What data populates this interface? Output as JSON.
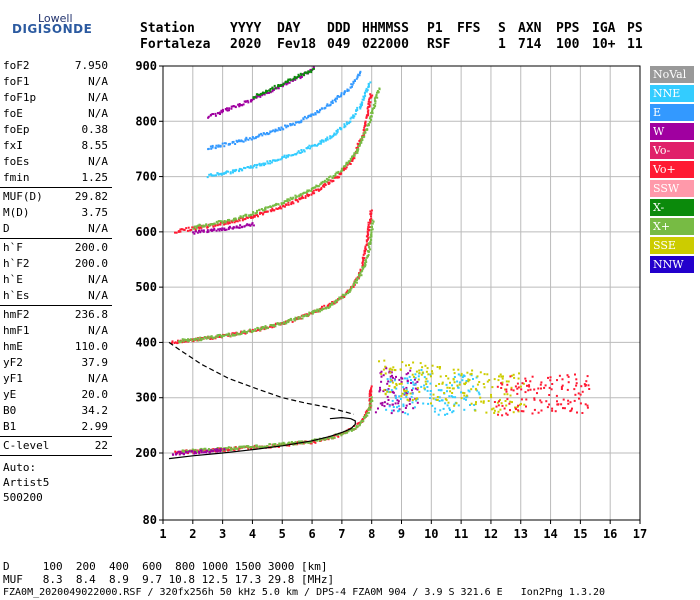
{
  "logo": {
    "top": "Lowell",
    "main": "DIGISONDE"
  },
  "header": {
    "labels": {
      "station": "Station",
      "year": "YYYY",
      "day": "DAY",
      "doy": "DDD",
      "time": "HHMMSS",
      "p1": "P1",
      "ffs": "FFS",
      "s": "S",
      "axn": "AXN",
      "pps": "PPS",
      "iga": "IGA",
      "ps": "PS"
    },
    "values": {
      "station": "Fortaleza",
      "year": "2020",
      "day": "Fev18",
      "doy": "049",
      "time": "022000",
      "p1": "RSF",
      "ffs": "",
      "s": "1",
      "axn": "714",
      "pps": "100",
      "iga": "10+",
      "ps": "11"
    }
  },
  "params": {
    "group1": [
      {
        "label": "foF2",
        "value": "7.950"
      },
      {
        "label": "foF1",
        "value": "N/A"
      },
      {
        "label": "foF1p",
        "value": "N/A"
      },
      {
        "label": "foE",
        "value": "N/A"
      },
      {
        "label": "foEp",
        "value": "0.38"
      },
      {
        "label": "fxI",
        "value": "8.55"
      },
      {
        "label": "foEs",
        "value": "N/A"
      },
      {
        "label": "fmin",
        "value": "1.25"
      }
    ],
    "group2": [
      {
        "label": "MUF(D)",
        "value": "29.82"
      },
      {
        "label": "M(D)",
        "value": "3.75"
      },
      {
        "label": "D",
        "value": "N/A"
      }
    ],
    "group3": [
      {
        "label": "h`F",
        "value": "200.0"
      },
      {
        "label": "h`F2",
        "value": "200.0"
      },
      {
        "label": "h`E",
        "value": "N/A"
      },
      {
        "label": "h`Es",
        "value": "N/A"
      }
    ],
    "group4": [
      {
        "label": "hmF2",
        "value": "236.8"
      },
      {
        "label": "hmF1",
        "value": "N/A"
      },
      {
        "label": "hmE",
        "value": "110.0"
      },
      {
        "label": "yF2",
        "value": "37.9"
      },
      {
        "label": "yF1",
        "value": "N/A"
      },
      {
        "label": "yE",
        "value": "20.0"
      },
      {
        "label": "B0",
        "value": "34.2"
      },
      {
        "label": "B1",
        "value": "2.99"
      }
    ],
    "group5": [
      {
        "label": "C-level",
        "value": "22"
      }
    ],
    "auto": [
      "Auto:",
      "Artist5",
      "500200"
    ]
  },
  "legend": [
    {
      "label": "NoVal",
      "color": "#999999"
    },
    {
      "label": "NNE",
      "color": "#33ccff"
    },
    {
      "label": "E",
      "color": "#3399ff"
    },
    {
      "label": "W",
      "color": "#a000a0"
    },
    {
      "label": "Vo-",
      "color": "#e0206a"
    },
    {
      "label": "Vo+",
      "color": "#ff1a33"
    },
    {
      "label": "SSW",
      "color": "#ff99aa"
    },
    {
      "label": "X-",
      "color": "#0b8a0b"
    },
    {
      "label": "X+",
      "color": "#77bb44"
    },
    {
      "label": "SSE",
      "color": "#cccc00"
    },
    {
      "label": "NNW",
      "color": "#2200cc"
    }
  ],
  "footer": {
    "d_row": "D     100  200  400  600  800 1000 1500 3000 [km]",
    "muf_row": "MUF   8.3  8.4  8.9  9.7 10.8 12.5 17.3 29.8 [MHz]",
    "file_row": "FZA0M_2020049022000.RSF / 320fx256h 50 kHz 5.0 km / DPS-4 FZA0M 904 / 3.9 S 321.6 E   Ion2Png 1.3.20"
  },
  "chart_data": {
    "type": "scatter",
    "title": "",
    "xlabel": "",
    "ylabel": "",
    "xlim": [
      1,
      17
    ],
    "xticks": [
      1,
      2,
      3,
      4,
      5,
      6,
      7,
      8,
      9,
      10,
      11,
      12,
      13,
      14,
      15,
      16,
      17
    ],
    "ylim": [
      80,
      900
    ],
    "yticks": [
      80,
      200,
      300,
      400,
      500,
      600,
      700,
      800,
      900
    ],
    "grid": true,
    "legend_position": "right",
    "traces": [
      {
        "name": "O-trace 1st hop",
        "color": "#ff1a33",
        "points": [
          [
            1.4,
            203
          ],
          [
            2,
            205
          ],
          [
            3,
            208
          ],
          [
            4,
            212
          ],
          [
            5,
            216
          ],
          [
            6,
            222
          ],
          [
            6.5,
            228
          ],
          [
            7,
            236
          ],
          [
            7.4,
            248
          ],
          [
            7.7,
            262
          ],
          [
            7.9,
            285
          ],
          [
            7.95,
            320
          ]
        ]
      },
      {
        "name": "X-trace 1st hop",
        "color": "#77bb44",
        "points": [
          [
            1.6,
            205
          ],
          [
            2.5,
            207
          ],
          [
            3.5,
            211
          ],
          [
            4.5,
            215
          ],
          [
            5.5,
            220
          ],
          [
            6.5,
            228
          ],
          [
            7.2,
            240
          ],
          [
            7.6,
            255
          ],
          [
            7.85,
            275
          ],
          [
            7.98,
            300
          ]
        ]
      },
      {
        "name": "W 1st hop",
        "color": "#a000a0",
        "points": [
          [
            1.3,
            201
          ],
          [
            2,
            203
          ],
          [
            2.5,
            205
          ],
          [
            3,
            207
          ]
        ]
      },
      {
        "name": "O-trace 2nd hop",
        "color": "#ff1a33",
        "points": [
          [
            1.3,
            402
          ],
          [
            2,
            406
          ],
          [
            3,
            413
          ],
          [
            4,
            423
          ],
          [
            5,
            436
          ],
          [
            6,
            455
          ],
          [
            6.8,
            476
          ],
          [
            7.3,
            500
          ],
          [
            7.6,
            530
          ],
          [
            7.8,
            580
          ],
          [
            7.95,
            640
          ]
        ]
      },
      {
        "name": "X-trace 2nd hop",
        "color": "#77bb44",
        "points": [
          [
            1.5,
            404
          ],
          [
            2.5,
            410
          ],
          [
            3.5,
            418
          ],
          [
            4.5,
            430
          ],
          [
            5.5,
            445
          ],
          [
            6.5,
            466
          ],
          [
            7.2,
            492
          ],
          [
            7.6,
            525
          ],
          [
            7.85,
            560
          ],
          [
            8,
            620
          ]
        ]
      },
      {
        "name": "O-trace 3rd hop",
        "color": "#ff1a33",
        "points": [
          [
            1.4,
            603
          ],
          [
            2,
            608
          ],
          [
            3,
            617
          ],
          [
            4,
            630
          ],
          [
            5,
            648
          ],
          [
            6,
            672
          ],
          [
            6.8,
            700
          ],
          [
            7.3,
            730
          ],
          [
            7.7,
            780
          ],
          [
            7.95,
            850
          ]
        ]
      },
      {
        "name": "X-trace 3rd hop",
        "color": "#77bb44",
        "points": [
          [
            2,
            610
          ],
          [
            3,
            620
          ],
          [
            4,
            635
          ],
          [
            5,
            655
          ],
          [
            6,
            680
          ],
          [
            7,
            715
          ],
          [
            7.5,
            750
          ],
          [
            7.9,
            800
          ],
          [
            8.2,
            860
          ]
        ]
      },
      {
        "name": "W 3rd hop",
        "color": "#a000a0",
        "points": [
          [
            2,
            600
          ],
          [
            3,
            607
          ],
          [
            4,
            615
          ]
        ]
      },
      {
        "name": "NNE upper",
        "color": "#33ccff",
        "points": [
          [
            2.5,
            703
          ],
          [
            3.5,
            713
          ],
          [
            4.5,
            727
          ],
          [
            5.5,
            745
          ],
          [
            6.5,
            770
          ],
          [
            7.2,
            800
          ],
          [
            7.6,
            830
          ],
          [
            7.9,
            870
          ]
        ]
      },
      {
        "name": "E upper",
        "color": "#3399ff",
        "points": [
          [
            2.5,
            753
          ],
          [
            3.5,
            765
          ],
          [
            4.5,
            780
          ],
          [
            5.5,
            800
          ],
          [
            6.5,
            830
          ],
          [
            7.2,
            860
          ],
          [
            7.6,
            890
          ]
        ]
      },
      {
        "name": "W top",
        "color": "#a000a0",
        "points": [
          [
            2.5,
            810
          ],
          [
            3.5,
            830
          ],
          [
            4.5,
            855
          ],
          [
            5.5,
            880
          ],
          [
            6,
            897
          ]
        ]
      },
      {
        "name": "X top",
        "color": "#0b8a0b",
        "points": [
          [
            4,
            845
          ],
          [
            5,
            870
          ],
          [
            6,
            895
          ]
        ]
      },
      {
        "name": "Spread F band",
        "color": "#a000a0",
        "points": [
          [
            8.2,
            310
          ],
          [
            8.5,
            330
          ],
          [
            8.8,
            300
          ],
          [
            9.2,
            320
          ],
          [
            9.5,
            305
          ]
        ]
      },
      {
        "name": "NNE spread",
        "color": "#33ccff",
        "points": [
          [
            8.5,
            305
          ],
          [
            9,
            300
          ],
          [
            9.5,
            320
          ],
          [
            10,
            310
          ],
          [
            10.5,
            300
          ],
          [
            11,
            315
          ],
          [
            11.5,
            305
          ]
        ]
      },
      {
        "name": "SSE spread",
        "color": "#cccc00",
        "points": [
          [
            8.3,
            340
          ],
          [
            12,
            310
          ],
          [
            12.5,
            305
          ],
          [
            13,
            315
          ]
        ]
      },
      {
        "name": "Vo+ spread",
        "color": "#ff1a33",
        "points": [
          [
            12.2,
            300
          ],
          [
            13,
            310
          ],
          [
            13.8,
            305
          ],
          [
            14.5,
            310
          ],
          [
            15.3,
            310
          ]
        ]
      }
    ],
    "curves": [
      {
        "name": "Electron density profile",
        "style": "solid",
        "color": "#000000",
        "points": [
          [
            1.2,
            190
          ],
          [
            2,
            195
          ],
          [
            3,
            200
          ],
          [
            4,
            206
          ],
          [
            5,
            213
          ],
          [
            6,
            222
          ],
          [
            6.6,
            230
          ],
          [
            7,
            237
          ],
          [
            7.3,
            244
          ],
          [
            7.45,
            252
          ],
          [
            7.45,
            258
          ],
          [
            7.3,
            262
          ],
          [
            7,
            264
          ],
          [
            6.6,
            262
          ]
        ]
      },
      {
        "name": "MUF curve",
        "style": "dashed",
        "color": "#000000",
        "points": [
          [
            1.2,
            400
          ],
          [
            1.6,
            385
          ],
          [
            2.3,
            360
          ],
          [
            3.2,
            335
          ],
          [
            4.2,
            315
          ],
          [
            5,
            300
          ],
          [
            5.8,
            290
          ],
          [
            6.5,
            283
          ],
          [
            7,
            276
          ],
          [
            7.4,
            270
          ]
        ]
      }
    ]
  }
}
